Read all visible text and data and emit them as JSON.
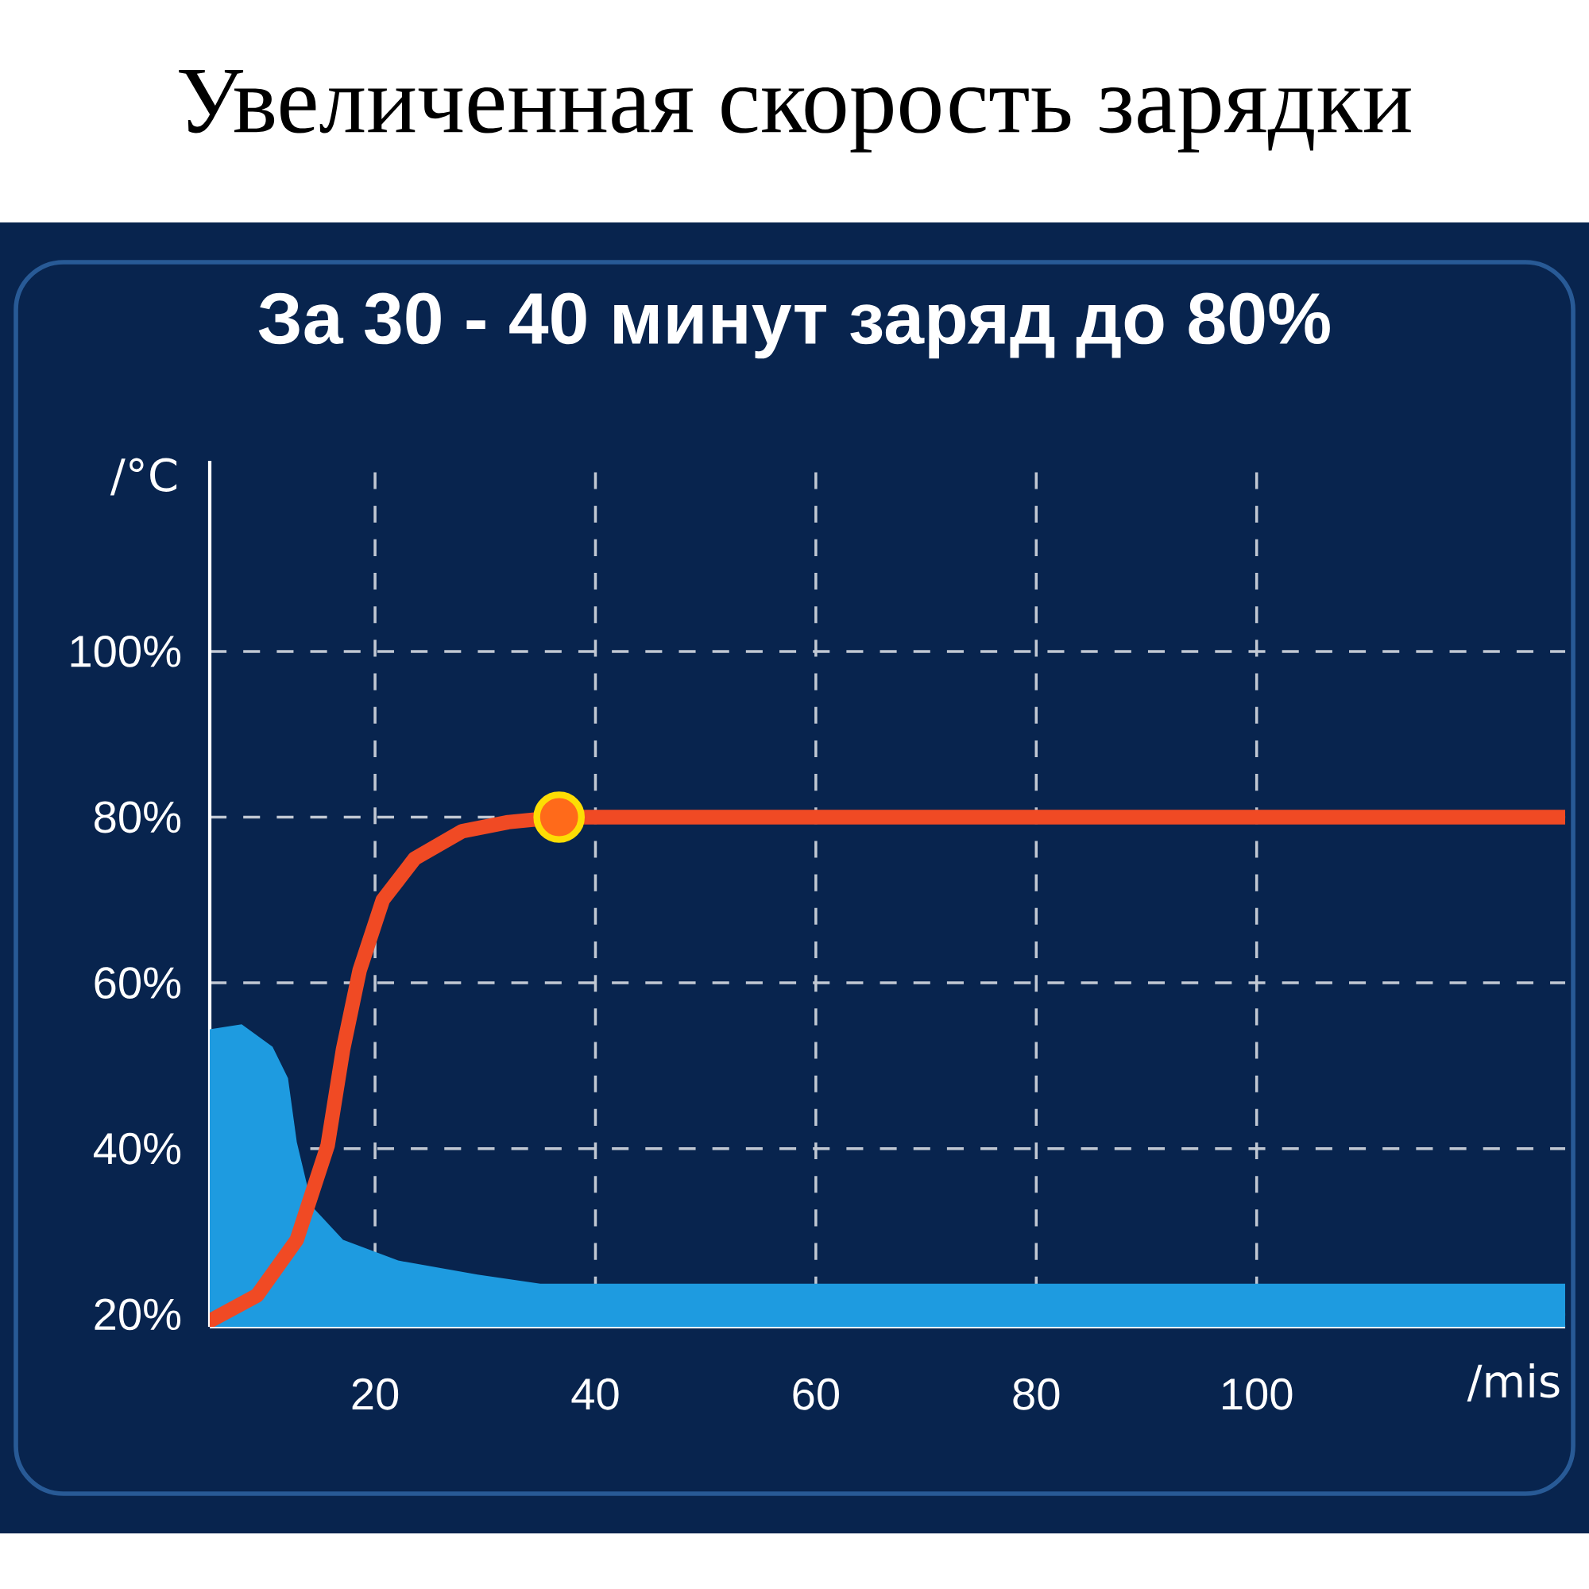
{
  "chart_data": {
    "type": "line",
    "title": "Увеличенная скорость зарядки",
    "subtitle": "За 30 - 40 минут заряд до 80%",
    "xlabel": "/mis",
    "ylabel": "/°C",
    "xlim": [
      5,
      128
    ],
    "ylim": [
      18.5,
      123
    ],
    "xticks": [
      20,
      40,
      60,
      80,
      100
    ],
    "yticks": [
      {
        "value": 20,
        "label": "20%"
      },
      {
        "value": 40,
        "label": "40%"
      },
      {
        "value": 60,
        "label": "60%"
      },
      {
        "value": 80,
        "label": "80%"
      },
      {
        "value": 100,
        "label": "100%"
      }
    ],
    "grid": true,
    "series": [
      {
        "type": "area",
        "color": "#1e9be0",
        "x": [
          5,
          7.9,
          10.7,
          12.1,
          12.9,
          14.3,
          17.1,
          22.1,
          29.3,
          35,
          128
        ],
        "values": [
          54.4,
          55,
          52.3,
          48.5,
          40.8,
          33,
          29,
          26.5,
          24.8,
          23.7,
          23.7
        ]
      },
      {
        "color": "#f04a24",
        "x": [
          5,
          9.3,
          12.9,
          15.7,
          17.1,
          18.6,
          20.7,
          23.6,
          27.9,
          32.1,
          36.7,
          128
        ],
        "values": [
          19.2,
          22.3,
          29,
          40.4,
          52,
          61.5,
          70,
          75,
          78.3,
          79.4,
          80,
          80
        ]
      },
      {
        "type": "scatter",
        "color": "#ff6a1a",
        "marker": "circle",
        "x": [
          36.7
        ],
        "values": [
          80
        ]
      }
    ]
  }
}
